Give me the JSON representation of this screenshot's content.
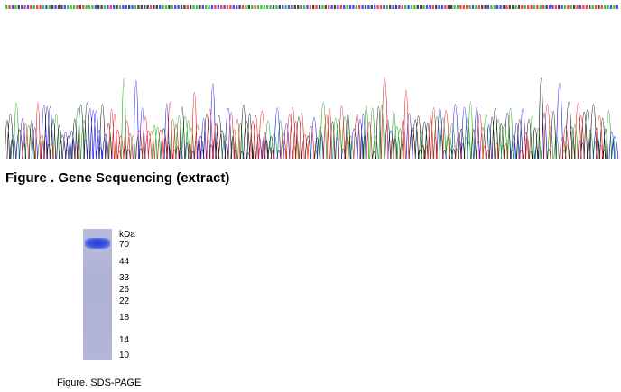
{
  "sequencing": {
    "caption": "Figure . Gene Sequencing (extract)",
    "base_colors": {
      "A": "#1aa31a",
      "C": "#1a1ae0",
      "G": "#111111",
      "T": "#e01818"
    }
  },
  "sds_page": {
    "caption": "Figure. SDS-PAGE",
    "unit": "kDa",
    "markers": [
      "70",
      "44",
      "33",
      "26",
      "22",
      "18",
      "14",
      "10"
    ],
    "gel_color": "#b3b5d9",
    "band_color": "#2b3fd6"
  }
}
